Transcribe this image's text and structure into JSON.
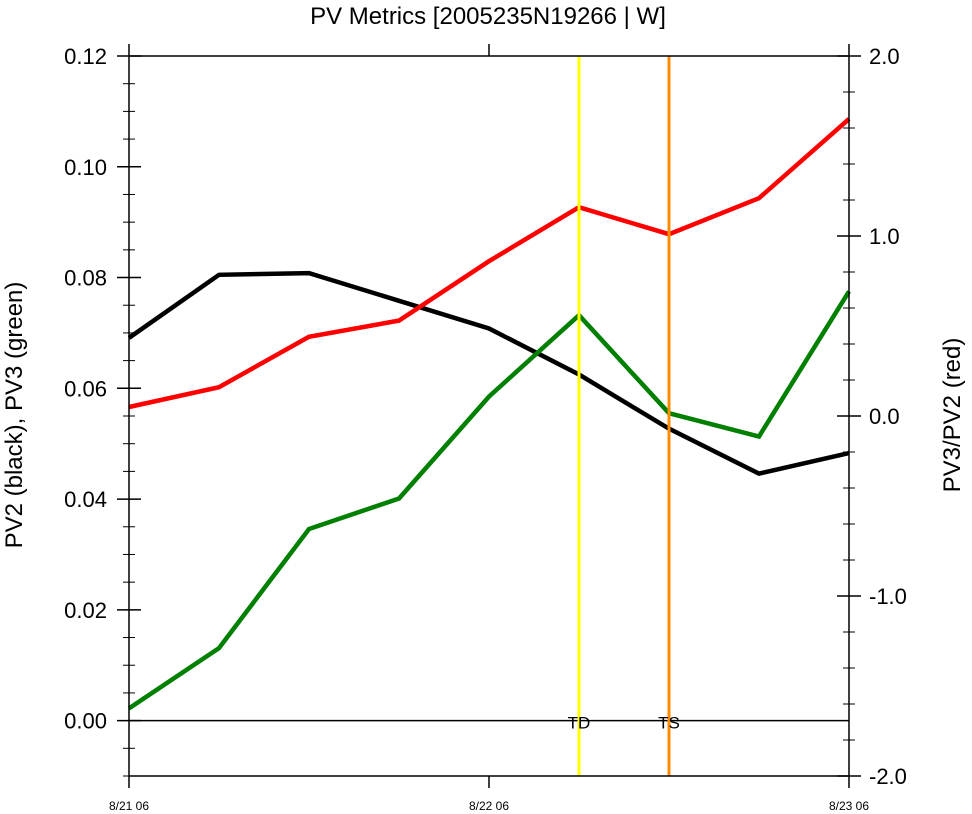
{
  "chart_data": {
    "type": "line",
    "title": "PV Metrics [2005235N19266 | W]",
    "ylabel_left": "PV2 (black), PV3 (green)",
    "ylabel_right": "PV3/PV2 (red)",
    "x_tick_labels": [
      "8/21 06",
      "8/22 06",
      "8/23 06"
    ],
    "x_tick_values": [
      0,
      24,
      48
    ],
    "x_unit": "hours since 8/21 06",
    "xlim": [
      0,
      48
    ],
    "ylim_left": [
      -0.01,
      0.12
    ],
    "ylim_right": [
      -2.0,
      2.0
    ],
    "yticks_left": [
      "0.00",
      "0.02",
      "0.04",
      "0.06",
      "0.08",
      "0.10",
      "0.12"
    ],
    "yticks_right": [
      "-2.0",
      "-1.0",
      "0.0",
      "1.0",
      "2.0"
    ],
    "x": [
      0,
      6,
      12,
      18,
      24,
      30,
      36,
      42,
      48
    ],
    "series": [
      {
        "name": "PV2",
        "axis": "left",
        "color": "#000000",
        "values": [
          0.0691,
          0.0805,
          0.0808,
          0.0758,
          0.0708,
          0.0625,
          0.0527,
          0.0446,
          0.0483
        ]
      },
      {
        "name": "PV3",
        "axis": "left",
        "color": "#008000",
        "values": [
          0.0022,
          0.0131,
          0.0346,
          0.0401,
          0.0585,
          0.0732,
          0.0555,
          0.0513,
          0.0775
        ]
      },
      {
        "name": "PV3/PV2",
        "axis": "right",
        "color": "#ff0000",
        "values": [
          0.05,
          0.16,
          0.44,
          0.53,
          0.86,
          1.16,
          1.01,
          1.21,
          1.65
        ]
      }
    ],
    "zero_line_left": 0.0,
    "events": [
      {
        "label": "TD",
        "x": 30,
        "color": "#ffff00"
      },
      {
        "label": "TS",
        "x": 36,
        "color": "#ff8c00"
      }
    ],
    "grid": false,
    "legend": "none"
  }
}
